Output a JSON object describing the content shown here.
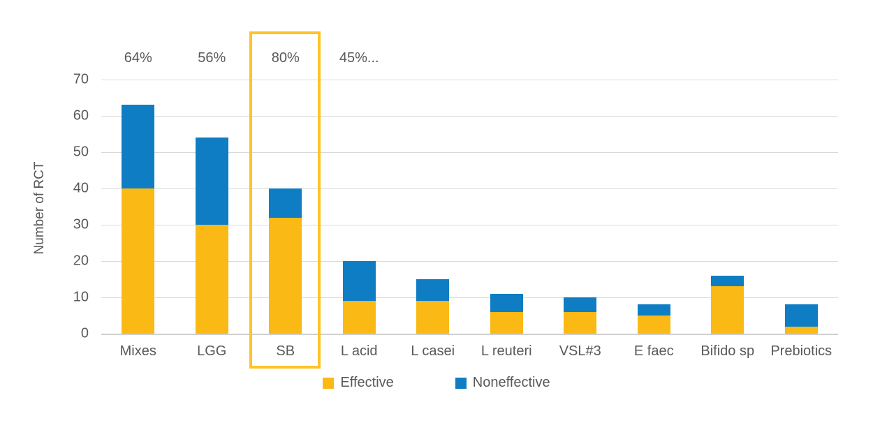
{
  "chart_data": {
    "type": "bar",
    "stacked": true,
    "ylabel": "Number of RCT",
    "ylim": [
      0,
      70
    ],
    "yticks": [
      0,
      10,
      20,
      30,
      40,
      50,
      60,
      70
    ],
    "grid": true,
    "legend_position": "bottom",
    "categories": [
      "Mixes",
      "LGG",
      "SB",
      "L acid",
      "L casei",
      "L reuteri",
      "VSL#3",
      "E faec",
      "Bifido sp",
      "Prebiotics"
    ],
    "series": [
      {
        "name": "Effective",
        "color": "#fab914",
        "values": [
          40,
          30,
          32,
          9,
          9,
          6,
          6,
          5,
          13,
          2
        ]
      },
      {
        "name": "Noneffective",
        "color": "#0e7dc3",
        "values": [
          23,
          24,
          8,
          11,
          6,
          5,
          4,
          3,
          3,
          6
        ]
      }
    ],
    "bar_labels": [
      "64%",
      "56%",
      "80%",
      "45%...",
      "",
      "",
      "",
      "",
      "",
      ""
    ],
    "highlight": {
      "category": "SB",
      "color": "#ffc323"
    }
  },
  "colors": {
    "gridline": "#d9d9d9",
    "axis_text": "#595959",
    "background": "#ffffff"
  }
}
